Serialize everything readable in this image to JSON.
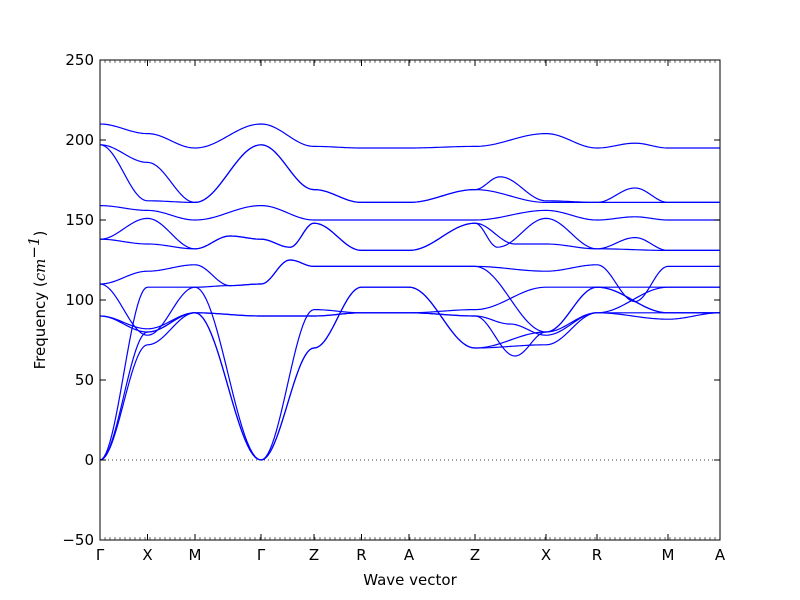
{
  "chart_data": {
    "type": "line",
    "xlabel": "Wave vector",
    "ylabel_text": "Frequency (",
    "ylabel_unit": "cm",
    "ylabel_exp": "−1",
    "ylabel_close": ")",
    "ylim": [
      -50,
      250
    ],
    "yticks": [
      -50,
      0,
      50,
      100,
      150,
      200,
      250
    ],
    "ytick_labels": [
      "−50",
      "0",
      "50",
      "100",
      "150",
      "200",
      "250"
    ],
    "xlim": [
      0,
      12.4
    ],
    "path_ticks": [
      {
        "label": "Γ",
        "x": 0
      },
      {
        "label": "X",
        "x": 0.95
      },
      {
        "label": "M",
        "x": 1.9
      },
      {
        "label": "Γ",
        "x": 3.22
      },
      {
        "label": "Z",
        "x": 4.28
      },
      {
        "label": "R",
        "x": 5.23
      },
      {
        "label": "A",
        "x": 6.18
      },
      {
        "label": "Z",
        "x": 7.5
      },
      {
        "label": "X",
        "x": 8.92
      },
      {
        "label": "R",
        "x": 9.94
      },
      {
        "label": "M",
        "x": 11.36
      },
      {
        "label": "A",
        "x": 12.4
      }
    ],
    "zero_line": true,
    "line_color": "#0000ff",
    "series": [
      {
        "x": [
          0,
          0.95,
          1.9,
          3.22,
          4.28,
          5.23,
          6.18,
          7.5,
          8.92,
          9.94,
          11.36,
          12.4
        ],
        "y": [
          0,
          80,
          92,
          0,
          70,
          108,
          108,
          70,
          80,
          108,
          92,
          92
        ]
      },
      {
        "x": [
          0,
          0.95,
          1.9,
          3.22,
          4.28,
          5.23,
          6.18,
          7.5,
          8.92,
          9.94,
          11.36,
          12.4
        ],
        "y": [
          0,
          72,
          92,
          0,
          70,
          108,
          108,
          70,
          72,
          92,
          88,
          92
        ]
      },
      {
        "x": [
          0,
          0.95,
          1.9,
          3.22,
          4.28,
          5.23,
          6.18,
          7.5,
          8.92,
          9.94,
          11.36,
          12.4
        ],
        "y": [
          0,
          108,
          108,
          0,
          94,
          92,
          92,
          94,
          108,
          108,
          92,
          92
        ]
      },
      {
        "x": [
          0,
          0.95,
          1.9,
          3.22,
          4.28,
          5.23,
          6.18,
          7.5,
          8.2,
          8.92,
          9.94,
          11.36,
          12.4
        ],
        "y": [
          90,
          82,
          92,
          90,
          90,
          92,
          92,
          90,
          85,
          78,
          92,
          108,
          108
        ]
      },
      {
        "x": [
          0,
          0.95,
          1.9,
          3.22,
          4.28,
          5.23,
          6.18,
          7.5,
          8.3,
          8.92,
          9.94,
          11.36,
          12.4
        ],
        "y": [
          90,
          80,
          92,
          90,
          90,
          92,
          92,
          90,
          65,
          80,
          92,
          92,
          92
        ]
      },
      {
        "x": [
          0,
          0.95,
          1.9,
          2.6,
          3.22,
          3.8,
          4.28,
          5.23,
          6.18,
          7.5,
          8.92,
          9.94,
          11.36,
          12.4
        ],
        "y": [
          110,
          78,
          108,
          109,
          110,
          125,
          121,
          121,
          121,
          121,
          80,
          108,
          108,
          108
        ]
      },
      {
        "x": [
          0,
          0.95,
          1.9,
          2.6,
          3.22,
          3.8,
          4.28,
          5.23,
          6.18,
          7.5,
          8.92,
          9.94,
          10.7,
          11.36,
          12.4
        ],
        "y": [
          110,
          118,
          122,
          109,
          110,
          125,
          121,
          121,
          121,
          121,
          118,
          122,
          99,
          121,
          121
        ]
      },
      {
        "x": [
          0,
          0.95,
          1.9,
          2.6,
          3.22,
          3.8,
          4.28,
          5.23,
          6.18,
          7.5,
          7.95,
          8.92,
          9.94,
          10.7,
          11.36,
          12.4
        ],
        "y": [
          138,
          151,
          132,
          140,
          138,
          133,
          148,
          131,
          131,
          148,
          133,
          151,
          132,
          139,
          131,
          131
        ]
      },
      {
        "x": [
          0,
          0.95,
          1.9,
          2.6,
          3.22,
          3.8,
          4.28,
          5.23,
          6.18,
          7.5,
          8.3,
          8.92,
          9.94,
          11.36,
          12.4
        ],
        "y": [
          138,
          135,
          132,
          140,
          138,
          133,
          148,
          131,
          131,
          148,
          135,
          135,
          132,
          131,
          131
        ]
      },
      {
        "x": [
          0,
          0.95,
          1.9,
          3.22,
          4.28,
          5.23,
          6.18,
          7.5,
          8.92,
          9.94,
          10.7,
          11.36,
          12.4
        ],
        "y": [
          159,
          156,
          150,
          159,
          150,
          150,
          150,
          150,
          156,
          150,
          152,
          150,
          150
        ]
      },
      {
        "x": [
          0,
          0.95,
          1.9,
          3.22,
          4.28,
          5.23,
          6.18,
          7.5,
          8.92,
          9.94,
          10.7,
          11.36,
          12.4
        ],
        "y": [
          197,
          162,
          161,
          197,
          169,
          161,
          161,
          169,
          161,
          161,
          161,
          161,
          161
        ]
      },
      {
        "x": [
          0,
          0.95,
          1.9,
          3.22,
          4.28,
          5.23,
          6.18,
          7.5,
          8.0,
          8.92,
          9.94,
          10.7,
          11.36,
          12.4
        ],
        "y": [
          197,
          186,
          161,
          197,
          169,
          161,
          161,
          169,
          177,
          162,
          161,
          170,
          161,
          161
        ]
      },
      {
        "x": [
          0,
          0.95,
          1.9,
          3.22,
          4.28,
          5.23,
          6.18,
          7.5,
          8.92,
          9.94,
          10.7,
          11.36,
          12.4
        ],
        "y": [
          210,
          204,
          195,
          210,
          196,
          195,
          195,
          196,
          204,
          195,
          198,
          195,
          195
        ]
      }
    ]
  }
}
